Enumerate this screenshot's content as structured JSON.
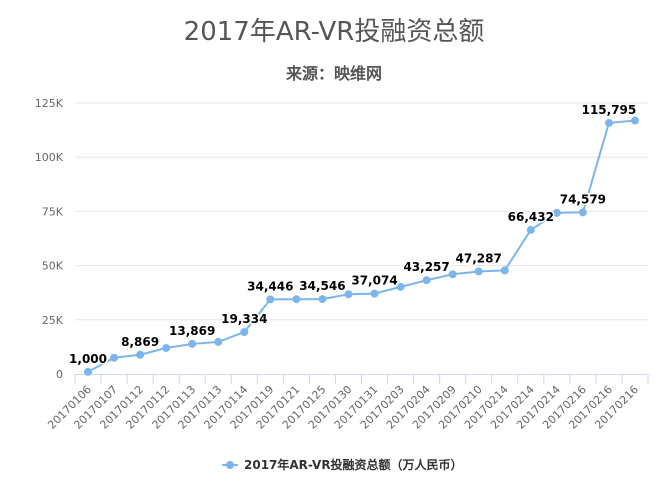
{
  "chart_data": {
    "type": "line",
    "title": "2017年AR-VR投融资总额",
    "subtitle": "来源：映维网",
    "xlabel": "",
    "ylabel": "",
    "ylim": [
      0,
      125000
    ],
    "yticks": [
      0,
      25000,
      50000,
      75000,
      100000,
      125000
    ],
    "ytick_labels": [
      "0",
      "25K",
      "50K",
      "75K",
      "100K",
      "125K"
    ],
    "grid": true,
    "legend_position": "bottom-center",
    "categories": [
      "20170106",
      "20170107",
      "20170112",
      "20170112",
      "20170113",
      "20170113",
      "20170114",
      "20170119",
      "20170121",
      "20170125",
      "20170130",
      "20170131",
      "20170203",
      "20170204",
      "20170209",
      "20170210",
      "20170214",
      "20170214",
      "20170214",
      "20170216",
      "20170216",
      "20170216"
    ],
    "series": [
      {
        "name": "2017年AR-VR投融资总额（万人民币）",
        "color": "#7cb5ec",
        "values": [
          1000,
          7500,
          8869,
          12000,
          13869,
          14800,
          19334,
          34446,
          34500,
          34546,
          36800,
          37074,
          40200,
          43257,
          46000,
          47287,
          47800,
          66432,
          74300,
          74579,
          115795,
          116900
        ],
        "data_labels": {
          "0": "1,000",
          "2": "8,869",
          "4": "13,869",
          "6": "19,334",
          "7": "34,446",
          "9": "34,546",
          "11": "37,074",
          "13": "43,257",
          "15": "47,287",
          "17": "66,432",
          "19": "74,579",
          "20": "115,795"
        }
      }
    ]
  }
}
